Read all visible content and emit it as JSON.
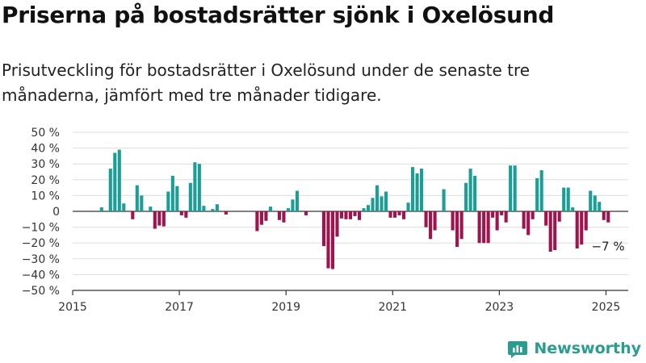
{
  "header": {
    "title": "Priserna på bostadsrätter sjönk i Oxelösund",
    "subtitle": "Prisutveckling för bostadsrätter i Oxelösund under de senaste tre månaderna, jämfört med tre månader tidigare."
  },
  "brand": {
    "name": "Newsworthy",
    "icon": "newsworthy-logo-icon",
    "color": "#2a9d8f"
  },
  "chart_data": {
    "type": "bar",
    "title": "",
    "xlabel": "",
    "ylabel": "",
    "x_unit": "month",
    "x_range": [
      "2015-01",
      "2025-06"
    ],
    "ylim": [
      -50,
      50
    ],
    "y_ticks": [
      "50 %",
      "40 %",
      "30 %",
      "20 %",
      "10 %",
      "0",
      "−10 %",
      "−20 %",
      "−30 %",
      "−40 %",
      "−50 %"
    ],
    "y_tick_values": [
      50,
      40,
      30,
      20,
      10,
      0,
      -10,
      -20,
      -30,
      -40,
      -50
    ],
    "x_ticks": [
      "2015",
      "2017",
      "2019",
      "2021",
      "2023",
      "2025"
    ],
    "x_tick_values": [
      "2015-01",
      "2017-01",
      "2019-01",
      "2021-01",
      "2023-01",
      "2025-01"
    ],
    "grid": true,
    "positive_color": "#1a9e96",
    "negative_color": "#a0134d",
    "annotation": {
      "text": "−7 %",
      "x": "2025-01"
    },
    "bars": [
      {
        "x": "2015-07",
        "y": 2.5
      },
      {
        "x": "2015-09",
        "y": 27
      },
      {
        "x": "2015-10",
        "y": 37
      },
      {
        "x": "2015-11",
        "y": 39
      },
      {
        "x": "2015-12",
        "y": 5
      },
      {
        "x": "2016-02",
        "y": -5
      },
      {
        "x": "2016-03",
        "y": 16.5
      },
      {
        "x": "2016-04",
        "y": 10
      },
      {
        "x": "2016-06",
        "y": 3
      },
      {
        "x": "2016-07",
        "y": -11
      },
      {
        "x": "2016-08",
        "y": -9
      },
      {
        "x": "2016-09",
        "y": -9.5
      },
      {
        "x": "2016-10",
        "y": 12.5
      },
      {
        "x": "2016-11",
        "y": 22.5
      },
      {
        "x": "2016-12",
        "y": 16
      },
      {
        "x": "2017-01",
        "y": -2.5
      },
      {
        "x": "2017-02",
        "y": -4
      },
      {
        "x": "2017-03",
        "y": 18
      },
      {
        "x": "2017-04",
        "y": 31
      },
      {
        "x": "2017-05",
        "y": 30
      },
      {
        "x": "2017-06",
        "y": 3.5
      },
      {
        "x": "2017-08",
        "y": 1.5
      },
      {
        "x": "2017-09",
        "y": 4.5
      },
      {
        "x": "2017-11",
        "y": -2
      },
      {
        "x": "2018-06",
        "y": -12.5
      },
      {
        "x": "2018-07",
        "y": -8.5
      },
      {
        "x": "2018-08",
        "y": -6
      },
      {
        "x": "2018-09",
        "y": 3
      },
      {
        "x": "2018-11",
        "y": -5.5
      },
      {
        "x": "2018-12",
        "y": -7
      },
      {
        "x": "2019-01",
        "y": 2
      },
      {
        "x": "2019-02",
        "y": 7.5
      },
      {
        "x": "2019-03",
        "y": 13
      },
      {
        "x": "2019-05",
        "y": -2.5
      },
      {
        "x": "2019-09",
        "y": -22
      },
      {
        "x": "2019-10",
        "y": -36
      },
      {
        "x": "2019-11",
        "y": -36.5
      },
      {
        "x": "2019-12",
        "y": -16
      },
      {
        "x": "2020-01",
        "y": -4.5
      },
      {
        "x": "2020-02",
        "y": -5
      },
      {
        "x": "2020-03",
        "y": -5
      },
      {
        "x": "2020-04",
        "y": -3
      },
      {
        "x": "2020-05",
        "y": -5.5
      },
      {
        "x": "2020-06",
        "y": 2
      },
      {
        "x": "2020-07",
        "y": 4
      },
      {
        "x": "2020-08",
        "y": 8.5
      },
      {
        "x": "2020-09",
        "y": 16.5
      },
      {
        "x": "2020-10",
        "y": 9.5
      },
      {
        "x": "2020-11",
        "y": 12.5
      },
      {
        "x": "2020-12",
        "y": -4
      },
      {
        "x": "2021-01",
        "y": -4
      },
      {
        "x": "2021-02",
        "y": -2.5
      },
      {
        "x": "2021-03",
        "y": -5
      },
      {
        "x": "2021-04",
        "y": 5.5
      },
      {
        "x": "2021-05",
        "y": 28
      },
      {
        "x": "2021-06",
        "y": 24
      },
      {
        "x": "2021-07",
        "y": 27
      },
      {
        "x": "2021-08",
        "y": -10
      },
      {
        "x": "2021-09",
        "y": -17.5
      },
      {
        "x": "2021-10",
        "y": -12
      },
      {
        "x": "2021-12",
        "y": 14
      },
      {
        "x": "2022-02",
        "y": -12
      },
      {
        "x": "2022-03",
        "y": -22.5
      },
      {
        "x": "2022-04",
        "y": -17.5
      },
      {
        "x": "2022-05",
        "y": 18
      },
      {
        "x": "2022-06",
        "y": 27
      },
      {
        "x": "2022-07",
        "y": 22.5
      },
      {
        "x": "2022-08",
        "y": -20
      },
      {
        "x": "2022-09",
        "y": -20
      },
      {
        "x": "2022-10",
        "y": -20
      },
      {
        "x": "2022-11",
        "y": -4
      },
      {
        "x": "2022-12",
        "y": -12
      },
      {
        "x": "2023-01",
        "y": -2.5
      },
      {
        "x": "2023-02",
        "y": -7
      },
      {
        "x": "2023-03",
        "y": 29
      },
      {
        "x": "2023-04",
        "y": 29
      },
      {
        "x": "2023-06",
        "y": -11
      },
      {
        "x": "2023-07",
        "y": -15
      },
      {
        "x": "2023-08",
        "y": -5
      },
      {
        "x": "2023-09",
        "y": 21
      },
      {
        "x": "2023-10",
        "y": 26
      },
      {
        "x": "2023-11",
        "y": -9
      },
      {
        "x": "2023-12",
        "y": -25.5
      },
      {
        "x": "2024-01",
        "y": -24.5
      },
      {
        "x": "2024-02",
        "y": -6.5
      },
      {
        "x": "2024-03",
        "y": 15
      },
      {
        "x": "2024-04",
        "y": 15
      },
      {
        "x": "2024-05",
        "y": 2.5
      },
      {
        "x": "2024-06",
        "y": -23.5
      },
      {
        "x": "2024-07",
        "y": -21
      },
      {
        "x": "2024-08",
        "y": -12
      },
      {
        "x": "2024-09",
        "y": 13
      },
      {
        "x": "2024-10",
        "y": 10
      },
      {
        "x": "2024-11",
        "y": 6
      },
      {
        "x": "2024-12",
        "y": -5.5
      },
      {
        "x": "2025-01",
        "y": -7
      }
    ]
  }
}
